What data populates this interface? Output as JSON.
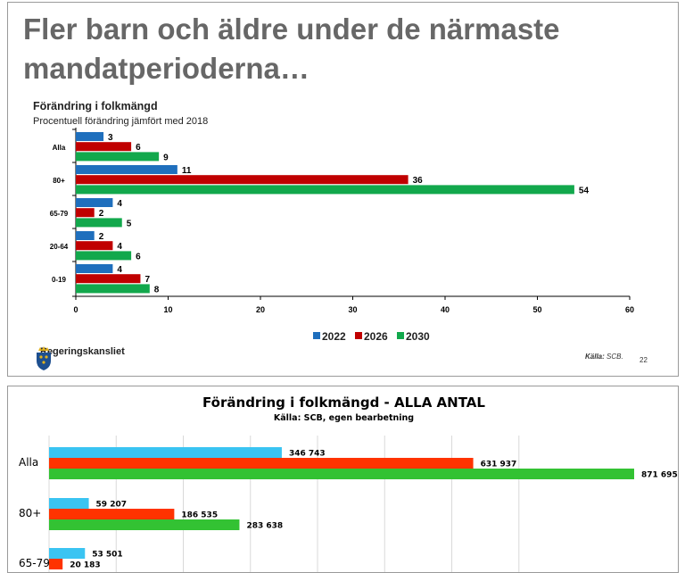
{
  "slide": {
    "headline": "Fler barn och äldre under de närmaste mandatperioderna…",
    "brand": "Regeringskansliet",
    "source_label": "Källa:",
    "source_text": "SCB.",
    "page_number": "22",
    "logo_icon": "crown-shield-icon"
  },
  "panel2": {
    "title": "Förändring i folkmängd - ALLA ANTAL",
    "subtitle": "Källa: SCB, egen bearbetning"
  },
  "chart_data": [
    {
      "type": "bar",
      "orientation": "horizontal",
      "title": "Förändring i folkmängd",
      "subtitle": "Procentuell förändring jämfört med 2018",
      "categories": [
        "Alla",
        "80+",
        "65-79",
        "20-64",
        "0-19"
      ],
      "series": [
        {
          "name": "2022",
          "color": "#1f6fbd",
          "values": [
            3,
            11,
            4,
            2,
            4
          ]
        },
        {
          "name": "2026",
          "color": "#c00000",
          "values": [
            6,
            36,
            2,
            4,
            7
          ]
        },
        {
          "name": "2030",
          "color": "#12a84c",
          "values": [
            9,
            54,
            5,
            6,
            8
          ]
        }
      ],
      "xticks": [
        0,
        10,
        20,
        30,
        40,
        50,
        60
      ],
      "xlim": [
        0,
        60
      ],
      "legend": "bottom"
    },
    {
      "type": "bar",
      "orientation": "horizontal",
      "title": "Förändring i folkmängd - ALLA ANTAL",
      "subtitle": "Källa: SCB, egen bearbetning",
      "categories": [
        "Alla",
        "80+",
        "65-79"
      ],
      "series": [
        {
          "color": "#3ac4f2",
          "values": [
            346743,
            59207,
            53501
          ],
          "labels": [
            "346 743",
            "59 207",
            "53 501"
          ]
        },
        {
          "color": "#ff3300",
          "values": [
            631937,
            186535,
            20183
          ],
          "labels": [
            "631 937",
            "186 535",
            "20 183"
          ]
        },
        {
          "color": "#33c233",
          "values": [
            871695,
            283638,
            null
          ],
          "labels": [
            "871 695",
            "283 638",
            ""
          ]
        }
      ],
      "xlim": [
        0,
        900000
      ],
      "grid": true
    }
  ]
}
